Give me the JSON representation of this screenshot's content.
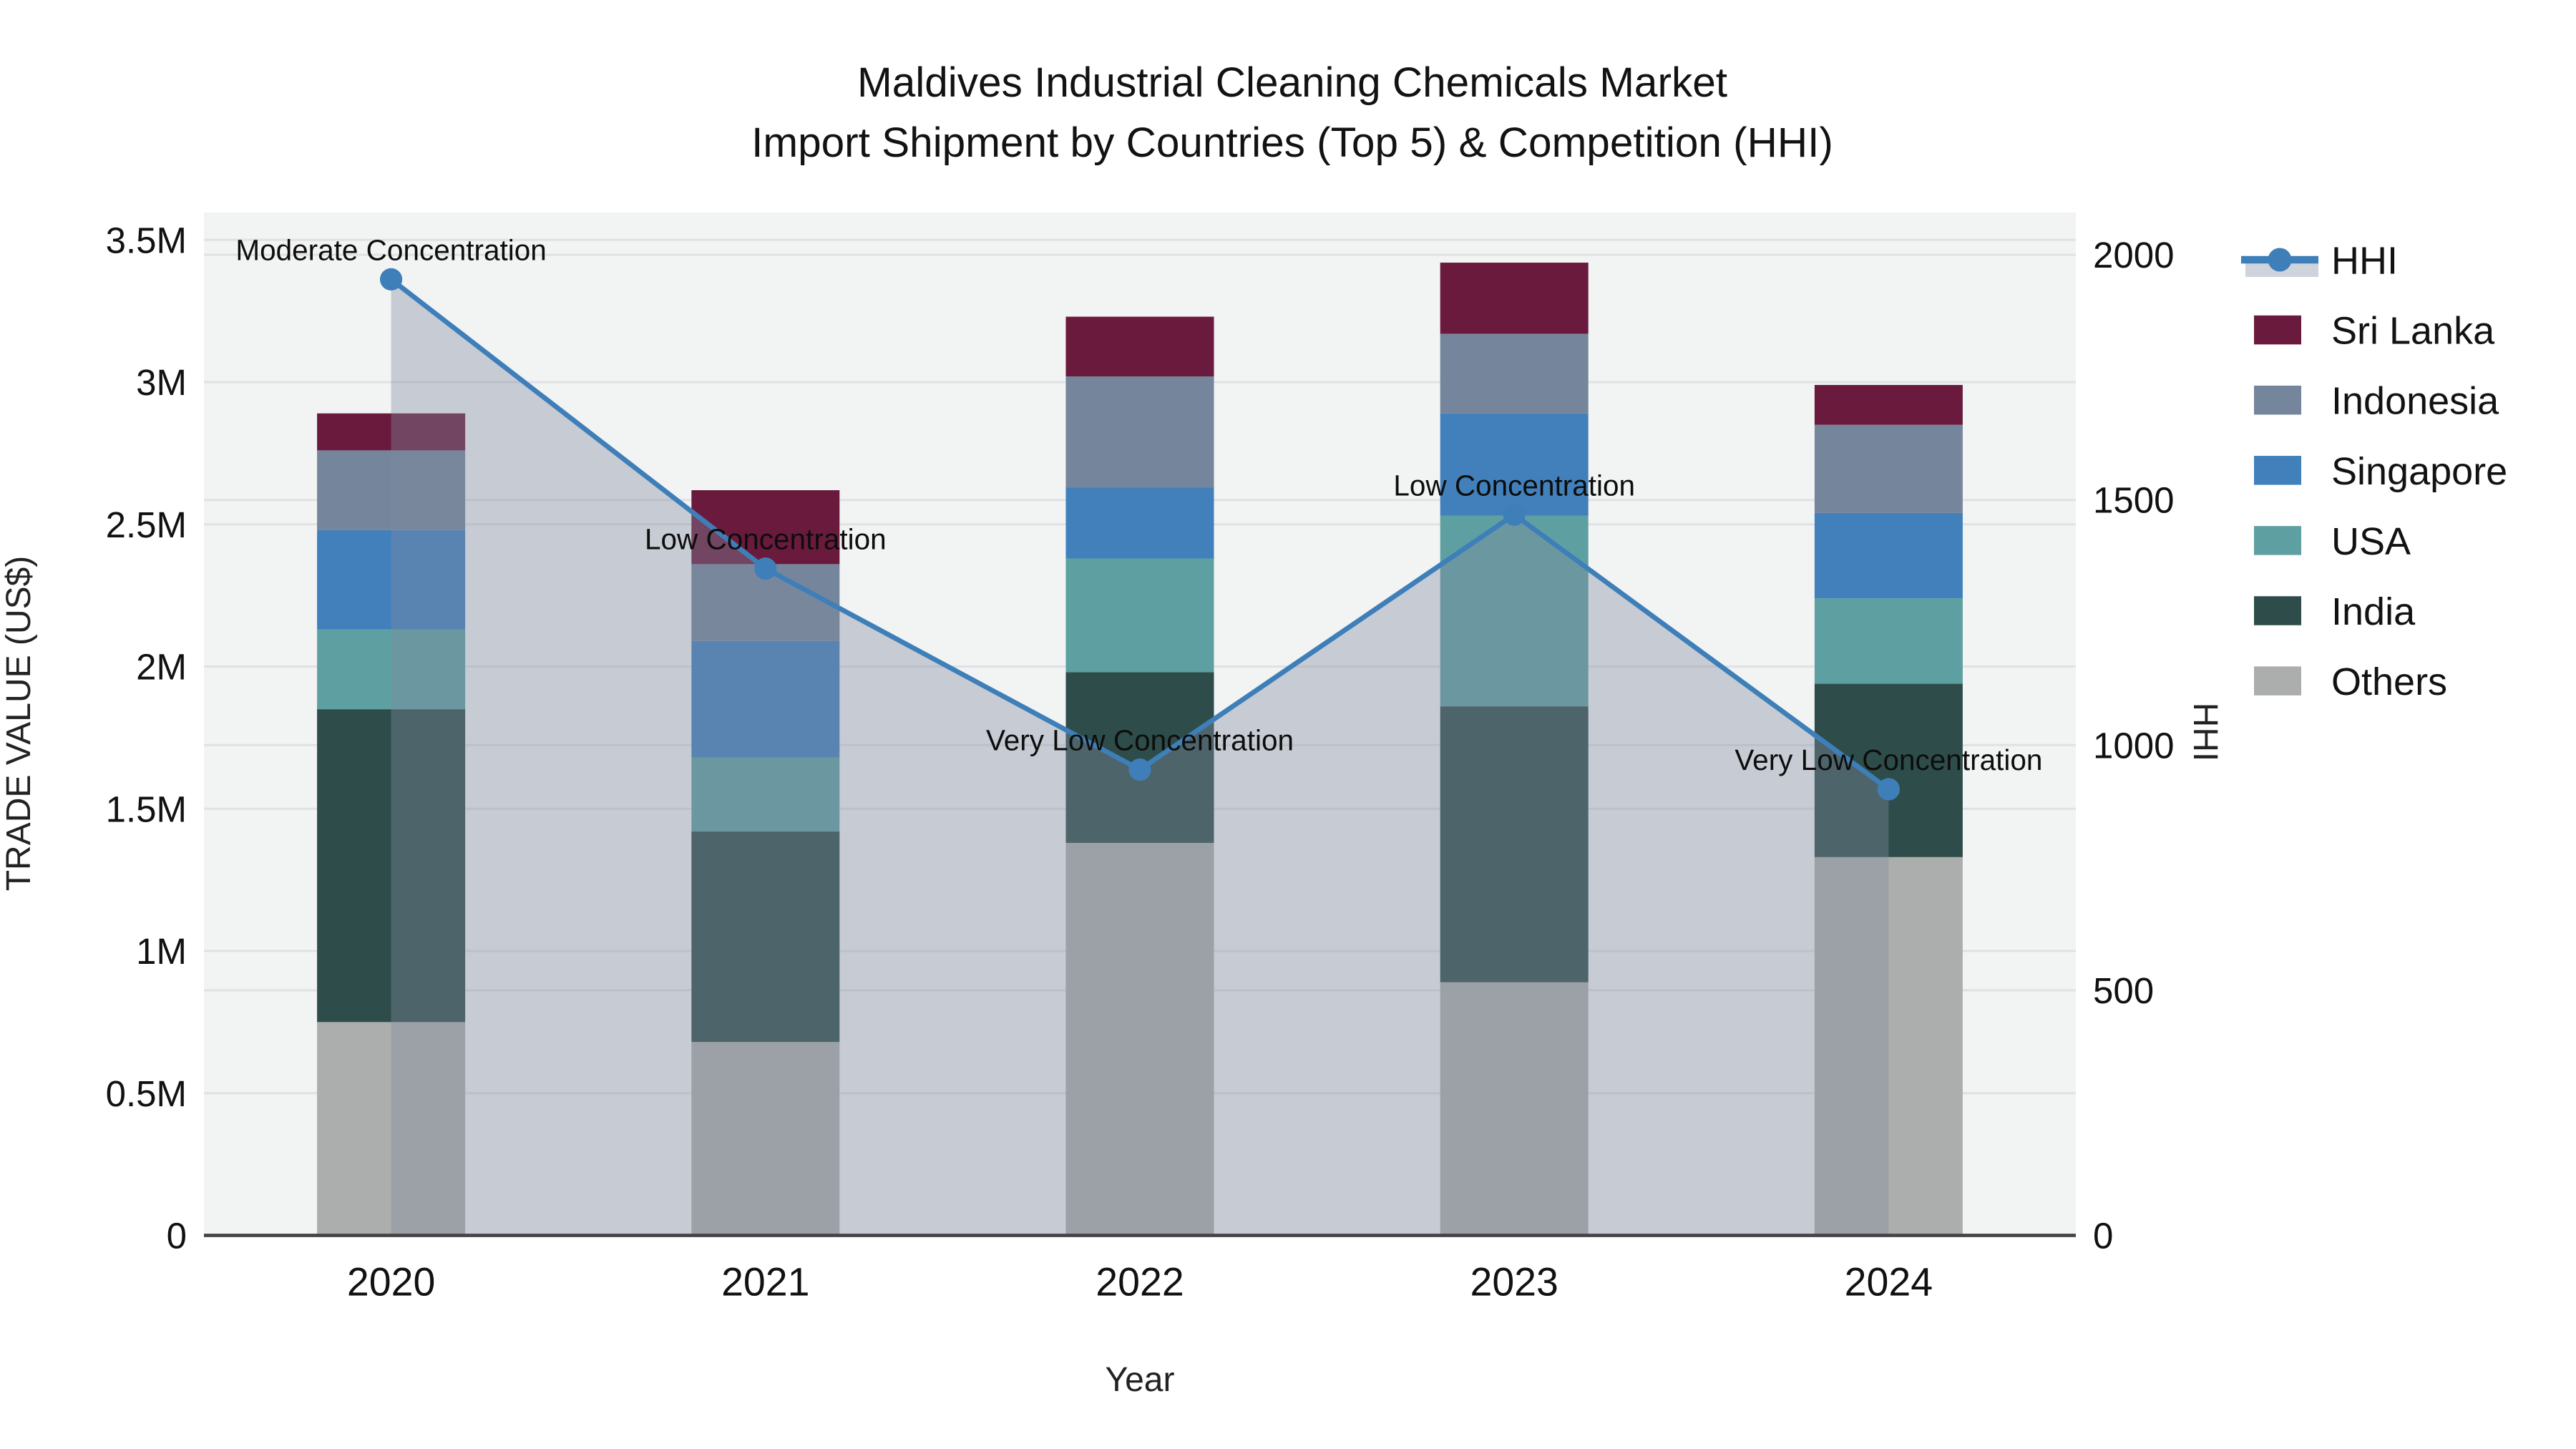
{
  "title": {
    "line1": "Maldives Industrial Cleaning Chemicals Market",
    "line2": "Import Shipment by Countries (Top 5) & Competition (HHI)"
  },
  "legend": {
    "items": [
      {
        "label": "HHI",
        "type": "line",
        "color": "#3E7FB9"
      },
      {
        "label": "Sri Lanka",
        "type": "swatch",
        "color": "#6A1B3D"
      },
      {
        "label": "Indonesia",
        "type": "swatch",
        "color": "#75859B"
      },
      {
        "label": "Singapore",
        "type": "swatch",
        "color": "#4180BB"
      },
      {
        "label": "USA",
        "type": "swatch",
        "color": "#5EA0A1"
      },
      {
        "label": "India",
        "type": "swatch",
        "color": "#2E4D4A"
      },
      {
        "label": "Others",
        "type": "swatch",
        "color": "#ABAEAC"
      }
    ]
  },
  "chart_data": {
    "type": "stacked-bar+line",
    "unit": "Trade value in US$ millions (left axis); HHI index (right axis)",
    "categories": [
      "2020",
      "2021",
      "2022",
      "2023",
      "2024"
    ],
    "bar_series_bottom_to_top": [
      {
        "name": "Others",
        "color": "#ABAEAC",
        "values": [
          0.75,
          0.68,
          1.38,
          0.89,
          1.33
        ]
      },
      {
        "name": "India",
        "color": "#2E4D4A",
        "values": [
          1.1,
          0.74,
          0.6,
          0.97,
          0.61
        ]
      },
      {
        "name": "USA",
        "color": "#5EA0A1",
        "values": [
          0.28,
          0.26,
          0.4,
          0.67,
          0.3
        ]
      },
      {
        "name": "Singapore",
        "color": "#4180BB",
        "values": [
          0.35,
          0.41,
          0.25,
          0.36,
          0.3
        ]
      },
      {
        "name": "Indonesia",
        "color": "#75859B",
        "values": [
          0.28,
          0.27,
          0.39,
          0.28,
          0.31
        ]
      },
      {
        "name": "Sri Lanka",
        "color": "#6A1B3D",
        "values": [
          0.13,
          0.26,
          0.21,
          0.25,
          0.14
        ]
      }
    ],
    "bar_totals": [
      2.89,
      2.62,
      3.23,
      3.42,
      2.99
    ],
    "line_series": {
      "name": "HHI",
      "axis": "right",
      "color": "#3E7FB9",
      "fill_color": "rgba(128,140,160,0.38)",
      "values": [
        1950,
        1360,
        950,
        1470,
        910
      ]
    },
    "annotations": [
      {
        "category": "2020",
        "text": "Moderate Concentration"
      },
      {
        "category": "2021",
        "text": "Low Concentration"
      },
      {
        "category": "2022",
        "text": "Very Low Concentration"
      },
      {
        "category": "2023",
        "text": "Low Concentration"
      },
      {
        "category": "2024",
        "text": "Very Low Concentration"
      }
    ],
    "y_left": {
      "label": "TRADE VALUE (US$)",
      "ticks": [
        "0",
        "0.5M",
        "1M",
        "1.5M",
        "2M",
        "2.5M",
        "3M",
        "3.5M"
      ],
      "tick_values_m": [
        0,
        0.5,
        1,
        1.5,
        2,
        2.5,
        3,
        3.5
      ],
      "range_m": [
        0,
        3.6
      ]
    },
    "y_right": {
      "label": "HHI",
      "ticks": [
        "0",
        "500",
        "1000",
        "1500",
        "2000"
      ],
      "tick_values": [
        0,
        500,
        1000,
        1500,
        2000
      ],
      "range": [
        0,
        2085
      ]
    },
    "x": {
      "label": "Year"
    },
    "grid": true,
    "legend_position": "right"
  },
  "colors": {
    "paper_background": "#ffffff",
    "plot_background": "#F2F3F3",
    "gridline": "#DFE1E4",
    "zeroline": "#454545",
    "hhi_line": "#3E7FB9",
    "hhi_fill": "rgba(128,140,160,0.38)",
    "legend_fill_band": "#CFD3DB",
    "text": "#111111"
  }
}
